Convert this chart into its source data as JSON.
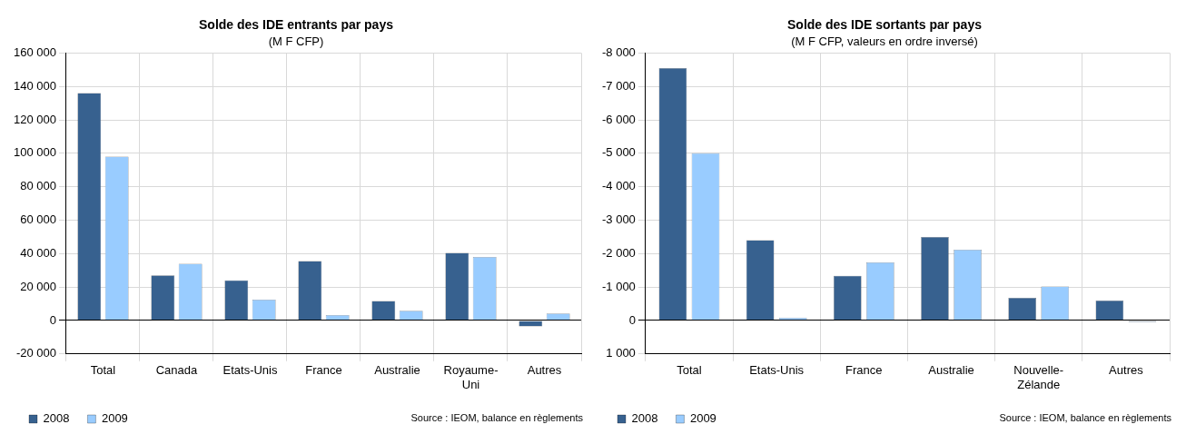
{
  "chart_data": [
    {
      "type": "bar",
      "title": "Solde des IDE entrants par pays",
      "subtitle": "(M F CFP)",
      "categories": [
        "Total",
        "Canada",
        "Etats-Unis",
        "France",
        "Australie",
        "Royaume-Uni",
        "Autres"
      ],
      "series": [
        {
          "name": "2008",
          "color": "#37618f",
          "values": [
            136000,
            27000,
            24000,
            35500,
            11700,
            40500,
            -3500
          ]
        },
        {
          "name": "2009",
          "color": "#99ccff",
          "values": [
            98000,
            34000,
            12500,
            3300,
            5800,
            38000,
            4200
          ]
        }
      ],
      "ylim": [
        -20000,
        160000
      ],
      "yticks": [
        {
          "value": -20000,
          "label": "-20 000"
        },
        {
          "value": 0,
          "label": "0"
        },
        {
          "value": 20000,
          "label": "20 000"
        },
        {
          "value": 40000,
          "label": "40 000"
        },
        {
          "value": 60000,
          "label": "60 000"
        },
        {
          "value": 80000,
          "label": "80 000"
        },
        {
          "value": 100000,
          "label": "100 000"
        },
        {
          "value": 120000,
          "label": "120 000"
        },
        {
          "value": 140000,
          "label": "140 000"
        },
        {
          "value": 160000,
          "label": "160 000"
        }
      ],
      "grid": true,
      "legend": "bottom left",
      "annotations": [
        "Source : IEOM, balance en règlements"
      ]
    },
    {
      "type": "bar",
      "title": "Solde des IDE sortants par pays",
      "subtitle": "(M F CFP, valeurs en ordre inversé)",
      "categories": [
        "Total",
        "Etats-Unis",
        "France",
        "Australie",
        "Nouvelle-Zélande",
        "Autres"
      ],
      "series": [
        {
          "name": "2008",
          "color": "#37618f",
          "values": [
            -7550,
            -2400,
            -1340,
            -2500,
            -680,
            -600
          ]
        },
        {
          "name": "2009",
          "color": "#99ccff",
          "values": [
            -5000,
            -80,
            -1740,
            -2120,
            -1020,
            50
          ]
        }
      ],
      "ylim": [
        1000,
        -8000
      ],
      "yticks": [
        {
          "value": 1000,
          "label": "1 000"
        },
        {
          "value": 0,
          "label": "0"
        },
        {
          "value": -1000,
          "label": "-1 000"
        },
        {
          "value": -2000,
          "label": "-2 000"
        },
        {
          "value": -3000,
          "label": "-3 000"
        },
        {
          "value": -4000,
          "label": "-4 000"
        },
        {
          "value": -5000,
          "label": "-5 000"
        },
        {
          "value": -6000,
          "label": "-6 000"
        },
        {
          "value": -7000,
          "label": "-7 000"
        },
        {
          "value": -8000,
          "label": "-8 000"
        }
      ],
      "grid": true,
      "legend": "bottom left",
      "annotations": [
        "Source : IEOM, balance en règlements"
      ]
    }
  ]
}
